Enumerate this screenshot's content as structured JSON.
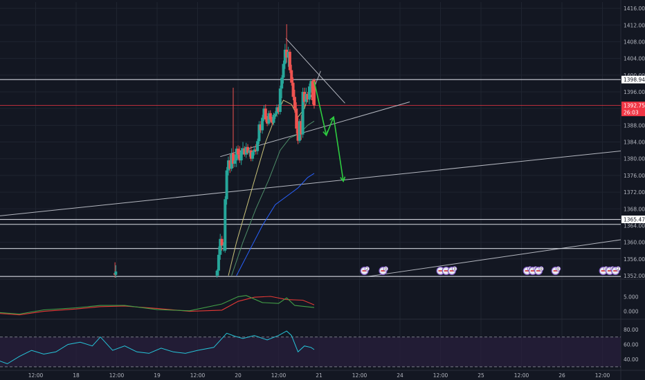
{
  "colors": {
    "background": "#131722",
    "grid": "#1f2430",
    "axis_text": "#b2b5be",
    "up": "#26a69a",
    "down": "#ef5350",
    "price_current": "#f23645",
    "white_line": "#d1d4dc",
    "arrow": "#2ecc40",
    "ema_yellow": "#c9c27a",
    "ema_green": "#4f8f6a",
    "ema_blue": "#2962ff",
    "macd_red": "#e53935",
    "macd_green": "#43a047",
    "rsi_line": "#26c6da",
    "rsi_band": "#2a1f3d"
  },
  "price_axis": {
    "ticks": [
      "1416.000",
      "1412.000",
      "1408.000",
      "1404.000",
      "1400.000",
      "1396.000",
      "1392.000",
      "1388.000",
      "1384.000",
      "1380.000",
      "1376.000",
      "1372.000",
      "1368.000",
      "1364.000",
      "1360.000",
      "1356.000",
      "1352.000"
    ],
    "labels": [
      {
        "text": "1398.942",
        "price": 1398.942,
        "style": "white"
      },
      {
        "text": "1392.753",
        "price": 1392.753,
        "style": "red"
      },
      {
        "text": "26:03",
        "price": 1391.1,
        "style": "red"
      },
      {
        "text": "1365.474",
        "price": 1365.474,
        "style": "white"
      }
    ]
  },
  "macd_axis": {
    "ticks": [
      "5.000",
      "0.000"
    ]
  },
  "rsi_axis": {
    "ticks": [
      "80.00",
      "60.00",
      "40.00"
    ]
  },
  "time_axis": {
    "labels": [
      {
        "text": "12:00",
        "t": 0.5
      },
      {
        "text": "18",
        "t": 1
      },
      {
        "text": "12:00",
        "t": 1.5
      },
      {
        "text": "19",
        "t": 2
      },
      {
        "text": "12:00",
        "t": 2.5
      },
      {
        "text": "20",
        "t": 3
      },
      {
        "text": "12:00",
        "t": 3.5
      },
      {
        "text": "21",
        "t": 4
      },
      {
        "text": "12:00",
        "t": 4.5
      },
      {
        "text": "24",
        "t": 5
      },
      {
        "text": "12:00",
        "t": 5.5
      },
      {
        "text": "25",
        "t": 6
      },
      {
        "text": "12:00",
        "t": 6.5
      },
      {
        "text": "26",
        "t": 7
      },
      {
        "text": "12:00",
        "t": 7.5
      }
    ]
  },
  "event_markers": [
    {
      "t": 4.56,
      "n": "2"
    },
    {
      "t": 4.79,
      "n": "0"
    },
    {
      "t": 5.5,
      "n": ""
    },
    {
      "t": 5.57,
      "n": ""
    },
    {
      "t": 5.64,
      "n": "3"
    },
    {
      "t": 6.57,
      "n": "0"
    },
    {
      "t": 6.64,
      "n": "0"
    },
    {
      "t": 6.71,
      "n": "0"
    },
    {
      "t": 6.92,
      "n": "0"
    },
    {
      "t": 7.51,
      "n": "0"
    },
    {
      "t": 7.59,
      "n": "0"
    },
    {
      "t": 7.66,
      "n": "2"
    }
  ],
  "chart_data": {
    "type": "candlestick",
    "title": "",
    "price_range": [
      1351.5,
      1417.5
    ],
    "current_price": 1392.753,
    "candles": [
      {
        "t": 1.48,
        "o": 1352.6,
        "h": 1355.2,
        "l": 1351.3,
        "c": 1352.2
      },
      {
        "t": 1.49,
        "o": 1352.2,
        "h": 1354.5,
        "l": 1351.3,
        "c": 1353.0
      },
      {
        "t": 2.74,
        "o": 1352.0,
        "h": 1353.5,
        "l": 1351.5,
        "c": 1353.2
      },
      {
        "t": 2.76,
        "o": 1353.2,
        "h": 1359.0,
        "l": 1352.0,
        "c": 1357.0
      },
      {
        "t": 2.78,
        "o": 1357.0,
        "h": 1362.0,
        "l": 1355.8,
        "c": 1360.8
      },
      {
        "t": 2.8,
        "o": 1360.8,
        "h": 1361.5,
        "l": 1358.0,
        "c": 1359.2
      },
      {
        "t": 2.82,
        "o": 1359.2,
        "h": 1360.0,
        "l": 1357.8,
        "c": 1359.3
      },
      {
        "t": 2.84,
        "o": 1358.0,
        "h": 1371.0,
        "l": 1357.5,
        "c": 1370.3
      },
      {
        "t": 2.86,
        "o": 1370.3,
        "h": 1378.0,
        "l": 1369.0,
        "c": 1377.2
      },
      {
        "t": 2.88,
        "o": 1377.2,
        "h": 1380.5,
        "l": 1376.0,
        "c": 1379.6
      },
      {
        "t": 2.9,
        "o": 1379.6,
        "h": 1381.0,
        "l": 1376.6,
        "c": 1377.6
      },
      {
        "t": 2.92,
        "o": 1377.6,
        "h": 1382.5,
        "l": 1377.0,
        "c": 1381.3
      },
      {
        "t": 2.94,
        "o": 1381.3,
        "h": 1397.0,
        "l": 1377.8,
        "c": 1378.8
      },
      {
        "t": 2.96,
        "o": 1378.8,
        "h": 1381.0,
        "l": 1378.0,
        "c": 1379.6
      },
      {
        "t": 2.98,
        "o": 1379.6,
        "h": 1383.0,
        "l": 1378.0,
        "c": 1382.4
      },
      {
        "t": 3.0,
        "o": 1382.4,
        "h": 1383.2,
        "l": 1380.0,
        "c": 1381.0
      },
      {
        "t": 3.02,
        "o": 1381.0,
        "h": 1383.0,
        "l": 1379.0,
        "c": 1379.6
      },
      {
        "t": 3.04,
        "o": 1379.6,
        "h": 1382.6,
        "l": 1378.5,
        "c": 1381.8
      },
      {
        "t": 3.06,
        "o": 1381.8,
        "h": 1384.0,
        "l": 1381.0,
        "c": 1382.5
      },
      {
        "t": 3.08,
        "o": 1382.5,
        "h": 1383.0,
        "l": 1380.5,
        "c": 1381.0
      },
      {
        "t": 3.1,
        "o": 1381.0,
        "h": 1383.8,
        "l": 1380.2,
        "c": 1382.8
      },
      {
        "t": 3.12,
        "o": 1382.8,
        "h": 1383.5,
        "l": 1381.0,
        "c": 1381.4
      },
      {
        "t": 3.14,
        "o": 1381.4,
        "h": 1382.6,
        "l": 1380.5,
        "c": 1382.0
      },
      {
        "t": 3.16,
        "o": 1382.0,
        "h": 1383.0,
        "l": 1379.4,
        "c": 1380.0
      },
      {
        "t": 3.18,
        "o": 1380.0,
        "h": 1382.0,
        "l": 1379.4,
        "c": 1381.6
      },
      {
        "t": 3.2,
        "o": 1381.6,
        "h": 1383.0,
        "l": 1380.8,
        "c": 1382.2
      },
      {
        "t": 3.22,
        "o": 1382.2,
        "h": 1383.5,
        "l": 1381.0,
        "c": 1381.8
      },
      {
        "t": 3.24,
        "o": 1381.8,
        "h": 1384.8,
        "l": 1381.0,
        "c": 1384.2
      },
      {
        "t": 3.26,
        "o": 1384.2,
        "h": 1389.0,
        "l": 1383.5,
        "c": 1388.2
      },
      {
        "t": 3.28,
        "o": 1388.2,
        "h": 1389.0,
        "l": 1386.2,
        "c": 1386.8
      },
      {
        "t": 3.3,
        "o": 1386.8,
        "h": 1390.5,
        "l": 1386.0,
        "c": 1389.8
      },
      {
        "t": 3.32,
        "o": 1389.8,
        "h": 1392.8,
        "l": 1389.0,
        "c": 1392.0
      },
      {
        "t": 3.34,
        "o": 1392.0,
        "h": 1393.0,
        "l": 1388.8,
        "c": 1389.4
      },
      {
        "t": 3.36,
        "o": 1389.4,
        "h": 1390.2,
        "l": 1387.8,
        "c": 1388.4
      },
      {
        "t": 3.38,
        "o": 1388.4,
        "h": 1391.5,
        "l": 1388.0,
        "c": 1390.9
      },
      {
        "t": 3.4,
        "o": 1390.9,
        "h": 1391.6,
        "l": 1388.8,
        "c": 1389.4
      },
      {
        "t": 3.42,
        "o": 1389.4,
        "h": 1390.0,
        "l": 1388.0,
        "c": 1388.6
      },
      {
        "t": 3.44,
        "o": 1388.6,
        "h": 1391.0,
        "l": 1388.0,
        "c": 1390.5
      },
      {
        "t": 3.46,
        "o": 1390.5,
        "h": 1391.4,
        "l": 1389.5,
        "c": 1390.8
      },
      {
        "t": 3.48,
        "o": 1390.8,
        "h": 1393.0,
        "l": 1390.0,
        "c": 1392.3
      },
      {
        "t": 3.5,
        "o": 1392.3,
        "h": 1393.0,
        "l": 1390.6,
        "c": 1391.2
      },
      {
        "t": 3.52,
        "o": 1391.2,
        "h": 1397.5,
        "l": 1390.6,
        "c": 1396.8
      },
      {
        "t": 3.54,
        "o": 1396.8,
        "h": 1400.0,
        "l": 1394.5,
        "c": 1399.4
      },
      {
        "t": 3.56,
        "o": 1399.4,
        "h": 1403.5,
        "l": 1398.0,
        "c": 1402.7
      },
      {
        "t": 3.58,
        "o": 1402.7,
        "h": 1407.5,
        "l": 1401.5,
        "c": 1406.1
      },
      {
        "t": 3.6,
        "o": 1406.1,
        "h": 1412.2,
        "l": 1403.0,
        "c": 1404.2
      },
      {
        "t": 3.62,
        "o": 1404.2,
        "h": 1406.8,
        "l": 1402.0,
        "c": 1405.6
      },
      {
        "t": 3.64,
        "o": 1405.6,
        "h": 1406.2,
        "l": 1400.5,
        "c": 1401.2
      },
      {
        "t": 3.66,
        "o": 1401.2,
        "h": 1402.5,
        "l": 1397.5,
        "c": 1398.2
      },
      {
        "t": 3.68,
        "o": 1398.2,
        "h": 1399.5,
        "l": 1394.0,
        "c": 1394.8
      },
      {
        "t": 3.7,
        "o": 1394.8,
        "h": 1396.5,
        "l": 1391.0,
        "c": 1392.0
      },
      {
        "t": 3.72,
        "o": 1392.0,
        "h": 1393.5,
        "l": 1386.0,
        "c": 1387.2
      },
      {
        "t": 3.74,
        "o": 1387.2,
        "h": 1390.2,
        "l": 1383.5,
        "c": 1384.3
      },
      {
        "t": 3.76,
        "o": 1384.3,
        "h": 1389.5,
        "l": 1383.8,
        "c": 1389.0
      },
      {
        "t": 3.78,
        "o": 1389.0,
        "h": 1390.5,
        "l": 1384.5,
        "c": 1385.8
      },
      {
        "t": 3.8,
        "o": 1385.8,
        "h": 1397.0,
        "l": 1385.0,
        "c": 1396.0
      },
      {
        "t": 3.82,
        "o": 1396.0,
        "h": 1397.0,
        "l": 1392.5,
        "c": 1393.6
      },
      {
        "t": 3.84,
        "o": 1393.6,
        "h": 1397.0,
        "l": 1393.0,
        "c": 1395.5
      },
      {
        "t": 3.86,
        "o": 1395.5,
        "h": 1396.0,
        "l": 1393.5,
        "c": 1394.2
      },
      {
        "t": 3.88,
        "o": 1394.2,
        "h": 1398.0,
        "l": 1393.0,
        "c": 1397.3
      },
      {
        "t": 3.9,
        "o": 1397.3,
        "h": 1399.0,
        "l": 1395.8,
        "c": 1398.6
      },
      {
        "t": 3.92,
        "o": 1398.6,
        "h": 1399.0,
        "l": 1393.0,
        "c": 1394.0
      },
      {
        "t": 3.94,
        "o": 1398.8,
        "h": 1399.2,
        "l": 1392.0,
        "c": 1392.753
      }
    ],
    "moving_averages": [
      {
        "color": "ema_yellow",
        "points": [
          [
            2.88,
            1352
          ],
          [
            2.98,
            1360
          ],
          [
            3.1,
            1368
          ],
          [
            3.22,
            1376
          ],
          [
            3.34,
            1384
          ],
          [
            3.46,
            1390
          ],
          [
            3.56,
            1394
          ],
          [
            3.66,
            1393
          ],
          [
            3.74,
            1390
          ],
          [
            3.82,
            1392
          ],
          [
            3.9,
            1397
          ],
          [
            3.94,
            1398
          ]
        ]
      },
      {
        "color": "ema_green",
        "points": [
          [
            2.92,
            1352
          ],
          [
            3.06,
            1360
          ],
          [
            3.22,
            1368
          ],
          [
            3.38,
            1375
          ],
          [
            3.52,
            1382
          ],
          [
            3.64,
            1385
          ],
          [
            3.76,
            1386
          ],
          [
            3.86,
            1388
          ],
          [
            3.94,
            1389
          ]
        ]
      },
      {
        "color": "ema_blue",
        "points": [
          [
            2.98,
            1352
          ],
          [
            3.14,
            1358
          ],
          [
            3.3,
            1364
          ],
          [
            3.46,
            1369
          ],
          [
            3.6,
            1371
          ],
          [
            3.74,
            1373
          ],
          [
            3.86,
            1375.5
          ],
          [
            3.94,
            1376.5
          ]
        ]
      }
    ],
    "horizontal_levels": [
      {
        "price": 1398.942,
        "color": "white_line"
      },
      {
        "price": 1392.753,
        "color": "price_current",
        "t_from": 0
      },
      {
        "price": 1365.474,
        "color": "white_line"
      },
      {
        "price": 1364.3,
        "color": "white_line"
      },
      {
        "price": 1358.5,
        "color": "white_line"
      },
      {
        "price": 1351.8,
        "color": "white_line"
      }
    ],
    "trendlines": [
      {
        "p1": [
          3.59,
          1408.8
        ],
        "p2": [
          4.32,
          1393.3
        ],
        "color": "white_line"
      },
      {
        "p1": [
          2.78,
          1380.5
        ],
        "p2": [
          5.12,
          1393.6
        ],
        "color": "white_line"
      },
      {
        "p1": [
          0.0,
          1366.2
        ],
        "p2": [
          7.8,
          1382.0
        ],
        "color": "white_line"
      },
      {
        "p1": [
          4.6,
          1351.8
        ],
        "p2": [
          7.8,
          1360.8
        ],
        "color": "white_line"
      },
      {
        "p1": [
          3.88,
          1394.0
        ],
        "p2": [
          4.02,
          1401.0
        ],
        "color": "white_line"
      }
    ],
    "projection_arrows": {
      "color": "arrow",
      "points": [
        [
          3.94,
          1398.5
        ],
        [
          4.09,
          1385.6
        ],
        [
          4.18,
          1390.0
        ],
        [
          4.3,
          1374.6
        ]
      ]
    },
    "macd": {
      "range": [
        -2.2,
        10.5
      ],
      "lines": [
        {
          "color": "macd_red",
          "points": [
            [
              0.0,
              -0.6
            ],
            [
              0.3,
              -1.2
            ],
            [
              0.6,
              0.0
            ],
            [
              1.0,
              0.8
            ],
            [
              1.3,
              1.6
            ],
            [
              1.6,
              1.8
            ],
            [
              2.0,
              1.0
            ],
            [
              2.4,
              0.0
            ],
            [
              2.8,
              0.4
            ],
            [
              3.0,
              3.4
            ],
            [
              3.2,
              4.8
            ],
            [
              3.4,
              5.1
            ],
            [
              3.6,
              4.0
            ],
            [
              3.8,
              3.8
            ],
            [
              3.94,
              2.2
            ]
          ]
        },
        {
          "color": "macd_green",
          "points": [
            [
              0.0,
              -0.3
            ],
            [
              0.3,
              -0.9
            ],
            [
              0.6,
              0.5
            ],
            [
              1.0,
              1.2
            ],
            [
              1.3,
              2.0
            ],
            [
              1.6,
              2.0
            ],
            [
              2.0,
              0.6
            ],
            [
              2.4,
              0.2
            ],
            [
              2.8,
              2.5
            ],
            [
              3.0,
              5.0
            ],
            [
              3.1,
              5.4
            ],
            [
              3.3,
              3.0
            ],
            [
              3.5,
              2.7
            ],
            [
              3.6,
              4.6
            ],
            [
              3.7,
              2.0
            ],
            [
              3.94,
              1.3
            ]
          ]
        }
      ]
    },
    "rsi": {
      "range": [
        28,
        92
      ],
      "band": [
        30,
        70
      ],
      "dashed_levels": [
        70,
        30
      ],
      "points": [
        [
          0.0,
          40
        ],
        [
          0.15,
          34
        ],
        [
          0.3,
          44
        ],
        [
          0.45,
          52
        ],
        [
          0.6,
          47
        ],
        [
          0.75,
          50
        ],
        [
          0.9,
          60
        ],
        [
          1.05,
          63
        ],
        [
          1.2,
          58
        ],
        [
          1.3,
          70
        ],
        [
          1.45,
          52
        ],
        [
          1.6,
          58
        ],
        [
          1.75,
          50
        ],
        [
          1.9,
          48
        ],
        [
          2.05,
          55
        ],
        [
          2.2,
          50
        ],
        [
          2.35,
          48
        ],
        [
          2.5,
          52
        ],
        [
          2.7,
          56
        ],
        [
          2.86,
          75
        ],
        [
          2.96,
          71
        ],
        [
          3.06,
          68
        ],
        [
          3.2,
          72
        ],
        [
          3.36,
          66
        ],
        [
          3.5,
          72
        ],
        [
          3.6,
          78
        ],
        [
          3.66,
          72
        ],
        [
          3.74,
          50
        ],
        [
          3.82,
          58
        ],
        [
          3.9,
          56
        ],
        [
          3.94,
          53
        ]
      ]
    }
  }
}
